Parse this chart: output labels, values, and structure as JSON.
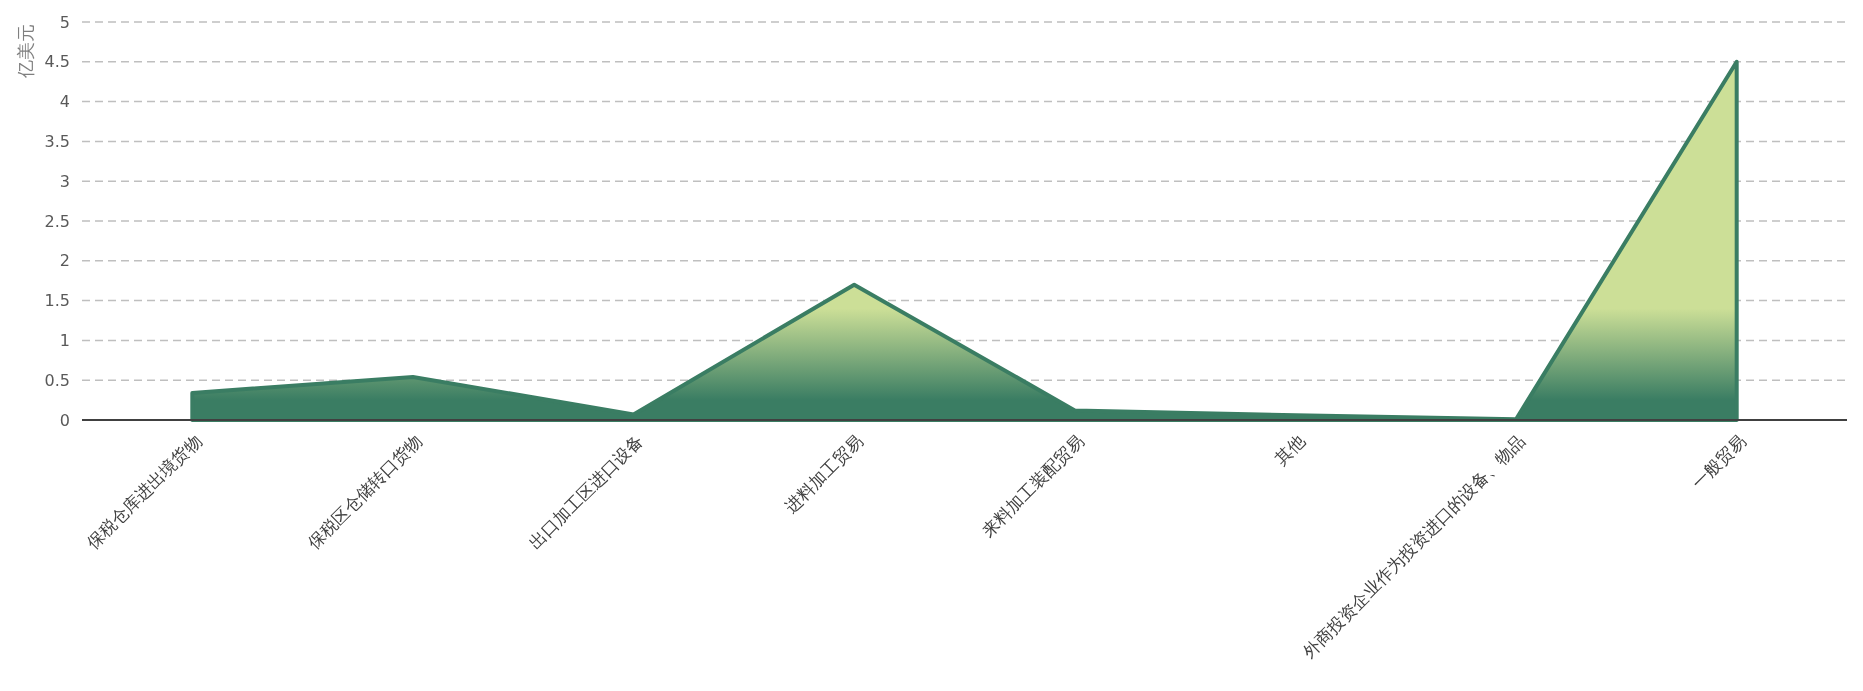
{
  "chart_data": {
    "type": "area",
    "ylabel": "亿美元",
    "categories": [
      "保税仓库进出境货物",
      "保税区仓储转口货物",
      "出口加工区进口设备",
      "进料加工贸易",
      "来料加工装配贸易",
      "其他",
      "外商投资企业作为投资进口的设备、物品",
      "一般贸易"
    ],
    "series": [
      {
        "color": "#3a7d63",
        "values": [
          0.34,
          0.54,
          0.07,
          1.7,
          0.12,
          0.06,
          0.01,
          4.5
        ]
      }
    ],
    "ylim": [
      0,
      5
    ],
    "yticks": [
      0,
      0.5,
      1,
      1.5,
      2,
      2.5,
      3,
      3.5,
      4,
      4.5,
      5
    ],
    "grid": "y"
  }
}
